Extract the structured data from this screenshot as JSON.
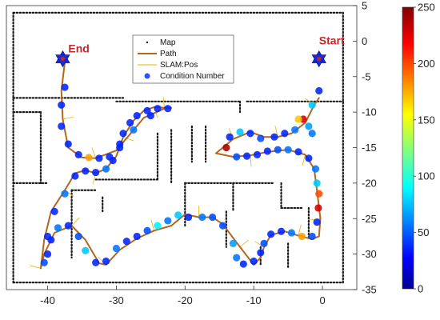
{
  "chart_data": {
    "type": "scatter",
    "xlim": [
      -46,
      5
    ],
    "ylim": [
      -35,
      5
    ],
    "x_ticks": [
      -40,
      -30,
      -20,
      -10,
      0
    ],
    "y_ticks": [
      5,
      0,
      -5,
      -10,
      -15,
      -20,
      -25,
      -30,
      -35
    ],
    "grid": false,
    "legend_position": "top-center",
    "legend": {
      "map": "Map",
      "path": "Path",
      "slam": "SLAM:Pos",
      "cond": "Condition Number"
    },
    "colorbar": {
      "range": [
        0,
        250
      ],
      "ticks": [
        250,
        200,
        150,
        100,
        50,
        0
      ],
      "colormap": "jet"
    },
    "annotations": {
      "start": {
        "label": "Start",
        "x": -0.5,
        "y": -2.5
      },
      "end": {
        "label": "End",
        "x": -37.8,
        "y": -2.5
      }
    },
    "series": [
      {
        "name": "Path",
        "x": [
          -0.5,
          -1.2,
          -2.5,
          -4.5,
          -6.5,
          -8.5,
          -10.5,
          -13,
          -15.5,
          -13,
          -10.5,
          -8,
          -5,
          -2.5,
          -1.2,
          -0.8,
          -0.3,
          -0.5,
          -1.5,
          -3.5,
          -5.5,
          -7.5,
          -8.5,
          -9,
          -10,
          -12,
          -14.5,
          -16,
          -18,
          -20,
          -22,
          -24.5,
          -27,
          -29.5,
          -31.5,
          -32.5,
          -34.5,
          -36.5,
          -39,
          -40.5,
          -41,
          -40.5,
          -39.5,
          -37.5,
          -36,
          -34.5,
          -33,
          -31.5,
          -30,
          -29,
          -27.5,
          -26,
          -24.5,
          -23,
          -22,
          -23,
          -26,
          -30,
          -33,
          -35,
          -37,
          -37.8,
          -38,
          -37.5
        ],
        "y": [
          -8,
          -9,
          -11.5,
          -13,
          -13.5,
          -13.5,
          -12.8,
          -13.8,
          -15.8,
          -16.3,
          -16.1,
          -15.6,
          -15.3,
          -16,
          -18,
          -21,
          -25,
          -27.5,
          -27.9,
          -27.4,
          -26.8,
          -27.3,
          -29,
          -30.5,
          -31.5,
          -29,
          -25.8,
          -24.8,
          -24.8,
          -24.4,
          -26,
          -26.7,
          -27.8,
          -29.4,
          -31.5,
          -31.3,
          -28,
          -26,
          -27,
          -30,
          -32,
          -28,
          -24,
          -21,
          -18.6,
          -18.2,
          -18.6,
          -18,
          -16.2,
          -13.5,
          -11.2,
          -9.8,
          -9.3,
          -9.4,
          -9.4,
          -9.5,
          -10.8,
          -15.4,
          -16.5,
          -16.4,
          -15,
          -11,
          -7,
          -3
        ]
      },
      {
        "name": "Condition Number",
        "x": [
          -0.5,
          -1.5,
          -2.8,
          -4,
          -5.5,
          -7,
          -9,
          -10.5,
          -12,
          -13.5,
          -14,
          -12.5,
          -11,
          -9.5,
          -8,
          -6.5,
          -5,
          -3.5,
          -2,
          -1,
          -0.8,
          -0.5,
          -0.6,
          -0.8,
          -1.5,
          -3,
          -4.5,
          -6,
          -7.5,
          -8.5,
          -9,
          -10,
          -11.5,
          -12.5,
          -13,
          -14.5,
          -16,
          -17.5,
          -19.5,
          -21,
          -22.5,
          -24,
          -25.5,
          -27,
          -28.5,
          -30,
          -31.5,
          -33,
          -34.5,
          -35.5,
          -37,
          -38.5,
          -39.5,
          -40,
          -40.5,
          -40,
          -39,
          -37.5,
          -36,
          -34.5,
          -33,
          -31.5,
          -30.5,
          -29.5,
          -29,
          -28,
          -27,
          -25.5,
          -24,
          -22.5,
          -25,
          -27.5,
          -29.5,
          -31,
          -32.5,
          -34,
          -35.5,
          -37,
          -38,
          -38,
          -37.5,
          -3.5,
          -2,
          -1.5
        ],
        "y": [
          -7,
          -9,
          -11,
          -12.5,
          -13,
          -13.5,
          -13.7,
          -13,
          -12.8,
          -13.5,
          -15,
          -16.3,
          -16.2,
          -16,
          -15.5,
          -15.3,
          -15.3,
          -15.6,
          -16.5,
          -18,
          -20,
          -21.5,
          -23.5,
          -25.5,
          -27.5,
          -27.5,
          -27,
          -26.8,
          -27.2,
          -28.5,
          -29.8,
          -31,
          -31.4,
          -30.5,
          -28.5,
          -26,
          -24.8,
          -24.8,
          -24.8,
          -24.5,
          -25.3,
          -26,
          -26.7,
          -27.5,
          -28.2,
          -29.2,
          -31,
          -31.2,
          -29.5,
          -27.5,
          -26,
          -26.3,
          -28,
          -30,
          -31.2,
          -27.5,
          -24,
          -21.5,
          -19,
          -18.3,
          -18.5,
          -18,
          -16.8,
          -14.5,
          -13,
          -11.5,
          -10.5,
          -9.8,
          -9.5,
          -9.5,
          -10.5,
          -12.5,
          -15,
          -16.3,
          -16.5,
          -16.4,
          -16,
          -14.5,
          -12,
          -9,
          -6.5,
          -11,
          -12,
          -13
        ],
        "values": [
          40,
          80,
          230,
          60,
          40,
          40,
          50,
          40,
          80,
          40,
          240,
          50,
          40,
          40,
          40,
          50,
          60,
          40,
          40,
          60,
          80,
          200,
          230,
          40,
          50,
          180,
          60,
          40,
          40,
          50,
          40,
          40,
          40,
          60,
          70,
          50,
          50,
          60,
          40,
          80,
          60,
          90,
          50,
          40,
          40,
          60,
          40,
          40,
          80,
          50,
          40,
          60,
          40,
          40,
          50,
          40,
          40,
          60,
          40,
          40,
          40,
          60,
          40,
          40,
          40,
          40,
          40,
          40,
          40,
          40,
          40,
          60,
          40,
          40,
          40,
          180,
          40,
          40,
          40,
          40,
          40,
          170,
          70,
          60
        ]
      }
    ]
  }
}
